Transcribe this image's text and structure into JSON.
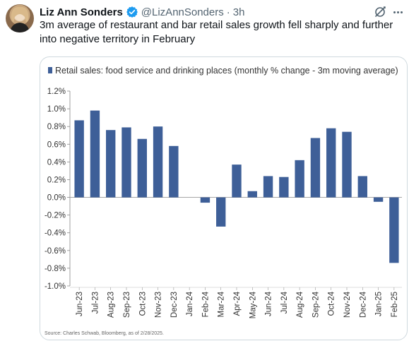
{
  "tweet": {
    "display_name": "Liz Ann Sonders",
    "handle": "@LizAnnSonders",
    "separator": "·",
    "time": "3h",
    "text": "3m average of restaurant and bar retail sales growth fell sharply and further into negative territory in February"
  },
  "colors": {
    "bar": "#3e5f98",
    "verified": "#1d9bf0",
    "muted_text": "#536471"
  },
  "chart_data": {
    "type": "bar",
    "legend": "Retail sales: food service and drinking places (monthly % change - 3m moving average)",
    "legend_position": "top",
    "categories": [
      "Jun-23",
      "Jul-23",
      "Aug-23",
      "Sep-23",
      "Oct-23",
      "Nov-23",
      "Dec-23",
      "Jan-24",
      "Feb-24",
      "Mar-24",
      "Apr-24",
      "May-24",
      "Jun-24",
      "Jul-24",
      "Aug-24",
      "Sep-24",
      "Oct-24",
      "Nov-24",
      "Dec-24",
      "Jan-25",
      "Feb-25"
    ],
    "values": [
      0.87,
      0.98,
      0.76,
      0.79,
      0.66,
      0.8,
      0.58,
      0.0,
      -0.06,
      -0.33,
      0.37,
      0.07,
      0.24,
      0.23,
      0.42,
      0.67,
      0.78,
      0.74,
      0.24,
      -0.05,
      -0.74
    ],
    "ylim": [
      -1.0,
      1.2
    ],
    "yticks": [
      1.2,
      1.0,
      0.8,
      0.6,
      0.4,
      0.2,
      0.0,
      -0.2,
      -0.4,
      -0.6,
      -0.8,
      -1.0
    ],
    "ytick_labels": [
      "1.2%",
      "1.0%",
      "0.8%",
      "0.6%",
      "0.4%",
      "0.2%",
      "0.0%",
      "-0.2%",
      "-0.4%",
      "-0.6%",
      "-0.8%",
      "-1.0%"
    ],
    "grid": true,
    "source": "Source: Charles Schwab, Bloomberg, as of 2/28/2025."
  }
}
